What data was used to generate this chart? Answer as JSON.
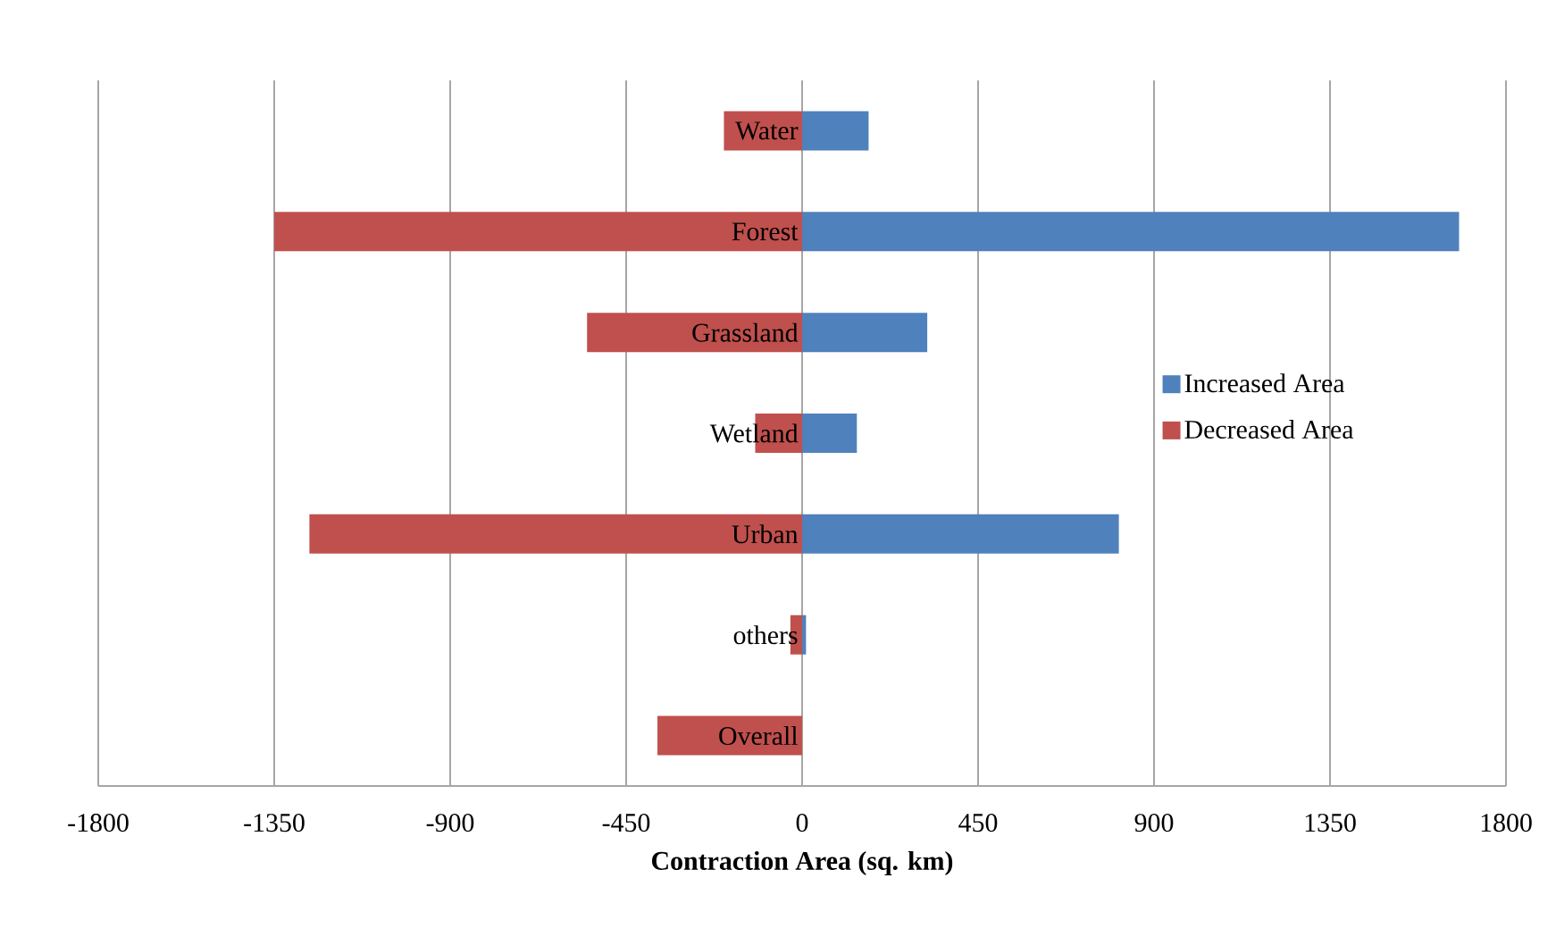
{
  "chart_data": {
    "type": "bar",
    "orientation": "horizontal",
    "xlabel": "Contraction Area  (sq. km)",
    "categories": [
      "Water",
      "Forest",
      "Grassland",
      "Wetland",
      "Urban",
      "others",
      "Overall"
    ],
    "series": [
      {
        "name": "Increased Area",
        "color": "#4f81bd",
        "values": [
          170,
          1680,
          320,
          140,
          810,
          10,
          0
        ]
      },
      {
        "name": "Decreased Area",
        "color": "#c0504d",
        "values": [
          -200,
          -1350,
          -550,
          -120,
          -1260,
          -30,
          -370
        ]
      }
    ],
    "xlim": [
      -1800,
      1800
    ],
    "xticks": [
      -1800,
      -1350,
      -900,
      -450,
      0,
      450,
      900,
      1350,
      1800
    ],
    "grid": "x",
    "legend": "right",
    "stacked": true
  }
}
